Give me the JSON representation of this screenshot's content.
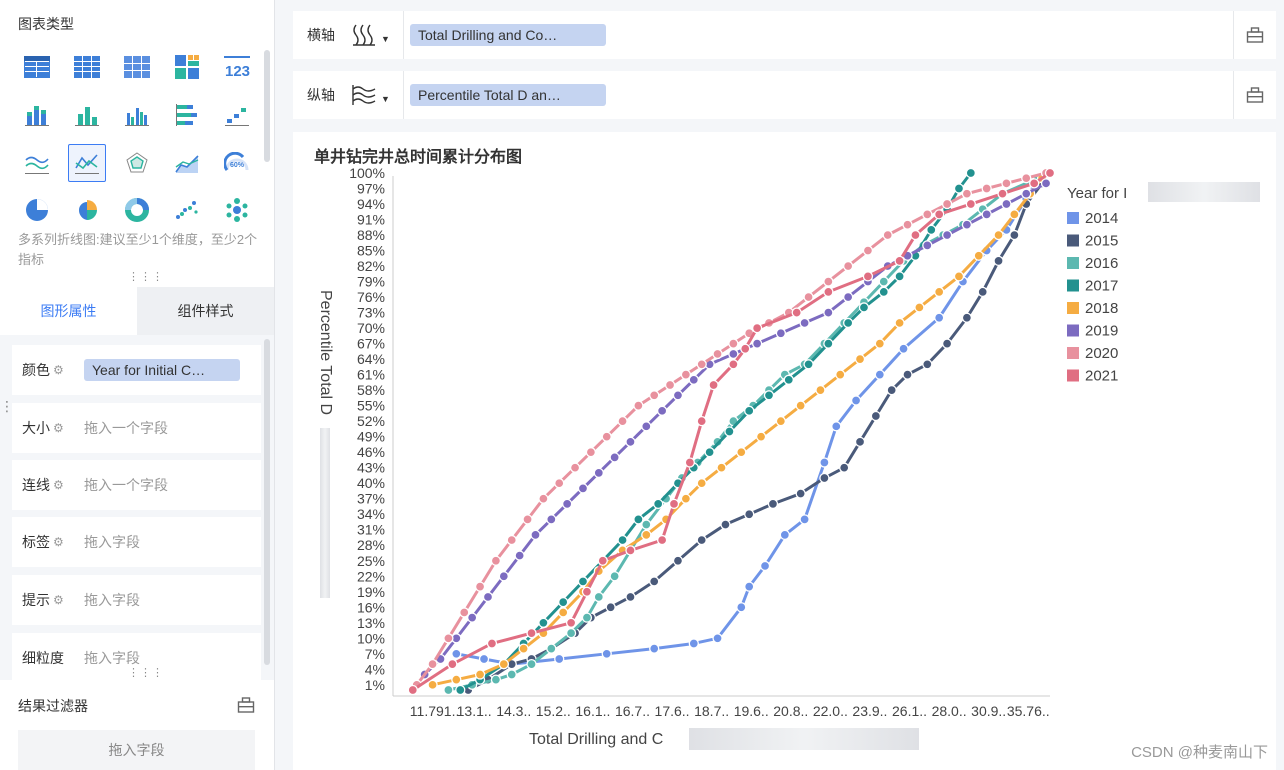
{
  "left_panel": {
    "chart_type_title": "图表类型",
    "hint": "多系列折线图:建议至少1个维度，至少2个指标",
    "tabs": [
      "图形属性",
      "组件样式"
    ],
    "props": [
      {
        "label": "颜色",
        "value": "Year for Initial C…",
        "filled": true
      },
      {
        "label": "大小",
        "value": "拖入一个字段",
        "filled": false
      },
      {
        "label": "连线",
        "value": "拖入一个字段",
        "filled": false
      },
      {
        "label": "标签",
        "value": "拖入字段",
        "filled": false
      },
      {
        "label": "提示",
        "value": "拖入字段",
        "filled": false
      },
      {
        "label": "细粒度",
        "value": "拖入字段",
        "filled": false
      }
    ],
    "filter_title": "结果过滤器",
    "filter_drop": "拖入字段"
  },
  "x_axis_bar": {
    "label": "横轴",
    "field": "Total Drilling and Co…"
  },
  "y_axis_bar": {
    "label": "纵轴",
    "field": "Percentile Total D an…"
  },
  "watermark": "CSDN @种麦南山下",
  "colors": {
    "accent": "#3c7cf4",
    "pill": "#c5d4f1"
  },
  "chart_data": {
    "type": "line",
    "title": "单井钻完井总时间累计分布图",
    "xlabel": "Total Drilling and C",
    "ylabel": "Percentile Total D",
    "legend_title": "Year for I",
    "legend_position": "right",
    "x_ticks": [
      "11.791..",
      "13.1..",
      "14.3..",
      "15.2..",
      "16.1..",
      "16.7..",
      "17.6..",
      "18.7..",
      "19.6..",
      "20.8..",
      "22.0..",
      "23.9..",
      "26.1..",
      "28.0..",
      "30.9..",
      "35.76.."
    ],
    "y_ticks": [
      "1%",
      "4%",
      "7%",
      "10%",
      "13%",
      "16%",
      "19%",
      "22%",
      "25%",
      "28%",
      "31%",
      "34%",
      "37%",
      "40%",
      "43%",
      "46%",
      "49%",
      "52%",
      "55%",
      "58%",
      "61%",
      "64%",
      "67%",
      "70%",
      "73%",
      "76%",
      "79%",
      "82%",
      "85%",
      "88%",
      "91%",
      "94%",
      "97%",
      "100%"
    ],
    "series": [
      {
        "name": "2014",
        "color": "#6f94e8",
        "points": [
          [
            1.6,
            7
          ],
          [
            2.3,
            6
          ],
          [
            3.0,
            5
          ],
          [
            4.2,
            6
          ],
          [
            5.4,
            7
          ],
          [
            6.6,
            8
          ],
          [
            7.6,
            9
          ],
          [
            8.2,
            10
          ],
          [
            8.8,
            16
          ],
          [
            9.0,
            20
          ],
          [
            9.4,
            24
          ],
          [
            9.9,
            30
          ],
          [
            10.4,
            33
          ],
          [
            10.9,
            44
          ],
          [
            11.2,
            51
          ],
          [
            11.7,
            56
          ],
          [
            12.3,
            61
          ],
          [
            12.9,
            66
          ],
          [
            13.8,
            72
          ],
          [
            14.4,
            79
          ],
          [
            15.0,
            85
          ],
          [
            15.5,
            89
          ],
          [
            16.0,
            95
          ],
          [
            16.3,
            99
          ]
        ]
      },
      {
        "name": "2015",
        "color": "#4a5a7a",
        "points": [
          [
            1.9,
            0
          ],
          [
            2.4,
            2
          ],
          [
            3.0,
            5
          ],
          [
            3.5,
            6
          ],
          [
            4.0,
            8
          ],
          [
            4.6,
            11
          ],
          [
            5.0,
            14
          ],
          [
            5.5,
            16
          ],
          [
            6.0,
            18
          ],
          [
            6.6,
            21
          ],
          [
            7.2,
            25
          ],
          [
            7.8,
            29
          ],
          [
            8.4,
            32
          ],
          [
            9.0,
            34
          ],
          [
            9.6,
            36
          ],
          [
            10.3,
            38
          ],
          [
            10.9,
            41
          ],
          [
            11.4,
            43
          ],
          [
            11.8,
            48
          ],
          [
            12.2,
            53
          ],
          [
            12.6,
            58
          ],
          [
            13.0,
            61
          ],
          [
            13.5,
            63
          ],
          [
            14.0,
            67
          ],
          [
            14.5,
            72
          ],
          [
            14.9,
            77
          ],
          [
            15.3,
            83
          ],
          [
            15.7,
            88
          ],
          [
            16.0,
            94
          ],
          [
            16.4,
            98
          ]
        ]
      },
      {
        "name": "2016",
        "color": "#5cb8b0",
        "points": [
          [
            1.4,
            0
          ],
          [
            2.0,
            1
          ],
          [
            2.6,
            2
          ],
          [
            3.0,
            3
          ],
          [
            3.5,
            5
          ],
          [
            4.0,
            8
          ],
          [
            4.5,
            11
          ],
          [
            4.9,
            14
          ],
          [
            5.2,
            18
          ],
          [
            5.6,
            22
          ],
          [
            6.0,
            27
          ],
          [
            6.4,
            32
          ],
          [
            6.9,
            37
          ],
          [
            7.3,
            41
          ],
          [
            7.7,
            44
          ],
          [
            8.2,
            48
          ],
          [
            8.6,
            52
          ],
          [
            9.1,
            55
          ],
          [
            9.5,
            58
          ],
          [
            9.9,
            61
          ],
          [
            10.4,
            63
          ],
          [
            10.9,
            67
          ],
          [
            11.4,
            71
          ],
          [
            11.9,
            75
          ],
          [
            12.4,
            79
          ],
          [
            12.9,
            83
          ],
          [
            13.4,
            86
          ],
          [
            13.9,
            88
          ],
          [
            14.4,
            90
          ],
          [
            14.9,
            93
          ],
          [
            15.4,
            96
          ],
          [
            16.3,
            99
          ]
        ]
      },
      {
        "name": "2017",
        "color": "#22918f",
        "points": [
          [
            1.7,
            0
          ],
          [
            2.2,
            2
          ],
          [
            2.8,
            5
          ],
          [
            3.3,
            9
          ],
          [
            3.8,
            13
          ],
          [
            4.3,
            17
          ],
          [
            4.8,
            21
          ],
          [
            5.3,
            25
          ],
          [
            5.8,
            29
          ],
          [
            6.2,
            33
          ],
          [
            6.7,
            36
          ],
          [
            7.2,
            40
          ],
          [
            7.6,
            43
          ],
          [
            8.0,
            46
          ],
          [
            8.5,
            50
          ],
          [
            9.0,
            54
          ],
          [
            9.5,
            57
          ],
          [
            10.0,
            60
          ],
          [
            10.5,
            63
          ],
          [
            11.0,
            67
          ],
          [
            11.5,
            71
          ],
          [
            11.9,
            74
          ],
          [
            12.4,
            77
          ],
          [
            12.8,
            80
          ],
          [
            13.2,
            84
          ],
          [
            13.6,
            89
          ],
          [
            14.0,
            93
          ],
          [
            14.3,
            97
          ],
          [
            14.6,
            100
          ]
        ]
      },
      {
        "name": "2018",
        "color": "#f5ac42",
        "points": [
          [
            1.0,
            1
          ],
          [
            1.6,
            2
          ],
          [
            2.2,
            3
          ],
          [
            2.8,
            5
          ],
          [
            3.3,
            8
          ],
          [
            3.8,
            11
          ],
          [
            4.3,
            15
          ],
          [
            4.8,
            19
          ],
          [
            5.2,
            23
          ],
          [
            5.8,
            27
          ],
          [
            6.4,
            30
          ],
          [
            6.9,
            33
          ],
          [
            7.4,
            37
          ],
          [
            7.8,
            40
          ],
          [
            8.3,
            43
          ],
          [
            8.8,
            46
          ],
          [
            9.3,
            49
          ],
          [
            9.8,
            52
          ],
          [
            10.3,
            55
          ],
          [
            10.8,
            58
          ],
          [
            11.3,
            61
          ],
          [
            11.8,
            64
          ],
          [
            12.3,
            67
          ],
          [
            12.8,
            71
          ],
          [
            13.3,
            74
          ],
          [
            13.8,
            77
          ],
          [
            14.3,
            80
          ],
          [
            14.8,
            84
          ],
          [
            15.3,
            88
          ],
          [
            15.7,
            92
          ],
          [
            16.1,
            96
          ],
          [
            16.4,
            99
          ]
        ]
      },
      {
        "name": "2019",
        "color": "#7c6bc0",
        "points": [
          [
            0.8,
            3
          ],
          [
            1.2,
            6
          ],
          [
            1.6,
            10
          ],
          [
            2.0,
            14
          ],
          [
            2.4,
            18
          ],
          [
            2.8,
            22
          ],
          [
            3.2,
            26
          ],
          [
            3.6,
            30
          ],
          [
            4.0,
            33
          ],
          [
            4.4,
            36
          ],
          [
            4.8,
            39
          ],
          [
            5.2,
            42
          ],
          [
            5.6,
            45
          ],
          [
            6.0,
            48
          ],
          [
            6.4,
            51
          ],
          [
            6.8,
            54
          ],
          [
            7.2,
            57
          ],
          [
            7.6,
            60
          ],
          [
            8.0,
            63
          ],
          [
            8.6,
            65
          ],
          [
            9.2,
            67
          ],
          [
            9.8,
            69
          ],
          [
            10.4,
            71
          ],
          [
            11.0,
            73
          ],
          [
            11.5,
            76
          ],
          [
            12.0,
            79
          ],
          [
            12.5,
            82
          ],
          [
            13.0,
            84
          ],
          [
            13.5,
            86
          ],
          [
            14.0,
            88
          ],
          [
            14.5,
            90
          ],
          [
            15.0,
            92
          ],
          [
            15.5,
            94
          ],
          [
            16.0,
            96
          ],
          [
            16.5,
            98
          ]
        ]
      },
      {
        "name": "2020",
        "color": "#e8919e",
        "points": [
          [
            0.6,
            1
          ],
          [
            1.0,
            5
          ],
          [
            1.4,
            10
          ],
          [
            1.8,
            15
          ],
          [
            2.2,
            20
          ],
          [
            2.6,
            25
          ],
          [
            3.0,
            29
          ],
          [
            3.4,
            33
          ],
          [
            3.8,
            37
          ],
          [
            4.2,
            40
          ],
          [
            4.6,
            43
          ],
          [
            5.0,
            46
          ],
          [
            5.4,
            49
          ],
          [
            5.8,
            52
          ],
          [
            6.2,
            55
          ],
          [
            6.6,
            57
          ],
          [
            7.0,
            59
          ],
          [
            7.4,
            61
          ],
          [
            7.8,
            63
          ],
          [
            8.2,
            65
          ],
          [
            8.6,
            67
          ],
          [
            9.0,
            69
          ],
          [
            9.5,
            71
          ],
          [
            10.0,
            73
          ],
          [
            10.5,
            76
          ],
          [
            11.0,
            79
          ],
          [
            11.5,
            82
          ],
          [
            12.0,
            85
          ],
          [
            12.5,
            88
          ],
          [
            13.0,
            90
          ],
          [
            13.5,
            92
          ],
          [
            14.0,
            94
          ],
          [
            14.5,
            96
          ],
          [
            15.0,
            97
          ],
          [
            15.5,
            98
          ],
          [
            16.0,
            99
          ],
          [
            16.5,
            100
          ]
        ]
      },
      {
        "name": "2021",
        "color": "#e06e82",
        "points": [
          [
            0.5,
            0
          ],
          [
            1.5,
            5
          ],
          [
            2.5,
            9
          ],
          [
            3.5,
            11
          ],
          [
            4.5,
            13
          ],
          [
            4.9,
            19
          ],
          [
            5.3,
            25
          ],
          [
            6.0,
            27
          ],
          [
            6.8,
            29
          ],
          [
            7.1,
            36
          ],
          [
            7.5,
            44
          ],
          [
            7.8,
            52
          ],
          [
            8.1,
            59
          ],
          [
            8.6,
            63
          ],
          [
            8.9,
            66
          ],
          [
            9.2,
            70
          ],
          [
            10.2,
            73
          ],
          [
            11.0,
            77
          ],
          [
            12.0,
            80
          ],
          [
            12.8,
            83
          ],
          [
            13.2,
            88
          ],
          [
            13.8,
            92
          ],
          [
            14.6,
            94
          ],
          [
            15.4,
            96
          ],
          [
            16.2,
            98
          ],
          [
            16.6,
            100
          ]
        ]
      }
    ]
  }
}
